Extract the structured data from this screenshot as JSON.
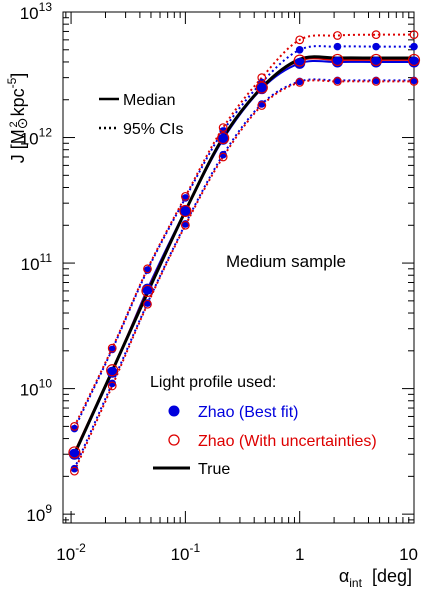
{
  "chart_data": {
    "type": "line",
    "xscale": "log",
    "yscale": "log",
    "xlim": [
      0.0085,
      10
    ],
    "ylim": [
      850000000,
      10000000000000
    ],
    "xlabel": {
      "main": "α",
      "sub": "int",
      "unit": "[deg]"
    },
    "ylabel": {
      "main": "J [M",
      "sun": "⊙",
      "sq": "2",
      "mid": " kpc",
      "exp": "-5",
      "close": "]"
    },
    "x_ticks": [
      {
        "value": 0.01,
        "base": "10",
        "exp": "-2"
      },
      {
        "value": 0.1,
        "base": "10",
        "exp": "-1"
      },
      {
        "value": 1,
        "base": "1",
        "exp": ""
      },
      {
        "value": 10,
        "base": "10",
        "exp": ""
      }
    ],
    "y_ticks": [
      {
        "value": 1000000000,
        "base": "10",
        "exp": "9"
      },
      {
        "value": 10000000000,
        "base": "10",
        "exp": "10"
      },
      {
        "value": 100000000000,
        "base": "10",
        "exp": "11"
      },
      {
        "value": 1000000000000,
        "base": "10",
        "exp": "12"
      },
      {
        "value": 10000000000000,
        "base": "10",
        "exp": "13"
      }
    ],
    "annotation": "Medium sample",
    "line_style_legend": [
      {
        "label": "Median",
        "style": "solid"
      },
      {
        "label": "95% CIs",
        "style": "dotted"
      }
    ],
    "legend_title": "Light profile used:",
    "legend": [
      {
        "label": "Zhao (Best fit)",
        "color": "#0000dd",
        "marker": "filled-circle"
      },
      {
        "label": "Zhao (With uncertainties)",
        "color": "#dd0000",
        "marker": "open-circle"
      },
      {
        "label": "True",
        "color": "#000000",
        "marker": "line"
      }
    ],
    "x": [
      0.0107,
      0.0229,
      0.0466,
      0.1,
      0.214,
      0.466,
      1.0,
      2.14,
      4.66,
      10.0
    ],
    "series": [
      {
        "name": "True",
        "color": "#000000",
        "style": "solid",
        "y": [
          3000000000.0,
          13800000000.0,
          58000000000.0,
          260000000000.0,
          1000000000000.0,
          2500000000000.0,
          4200000000000.0,
          4300000000000.0,
          4300000000000.0,
          4300000000000.0
        ]
      },
      {
        "name": "Zhao (Best fit)",
        "color": "#0000dd",
        "style": "solid",
        "y": [
          3000000000.0,
          13500000000.0,
          62000000000.0,
          262000000000.0,
          970000000000.0,
          2450000000000.0,
          3900000000000.0,
          4000000000000.0,
          4000000000000.0,
          4000000000000.0
        ]
      },
      {
        "name": "Zhao (Best fit)",
        "color": "#0000dd",
        "style": "dotted",
        "y": [
          4800000000.0,
          20500000000.0,
          88000000000.0,
          330000000000.0,
          1130000000000.0,
          2750000000000.0,
          5000000000000.0,
          5300000000000.0,
          5300000000000.0,
          5300000000000.0
        ]
      },
      {
        "name": "Zhao (Best fit)",
        "color": "#0000dd",
        "style": "dotted",
        "y": [
          2300000000.0,
          11000000000.0,
          48000000000.0,
          205000000000.0,
          730000000000.0,
          1850000000000.0,
          2800000000000.0,
          2850000000000.0,
          2850000000000.0,
          2850000000000.0
        ]
      },
      {
        "name": "Zhao (With uncertainties)",
        "color": "#dd0000",
        "style": "solid",
        "y": [
          3100000000.0,
          14000000000.0,
          60000000000.0,
          260000000000.0,
          990000000000.0,
          2500000000000.0,
          4100000000000.0,
          4150000000000.0,
          4150000000000.0,
          4150000000000.0
        ]
      },
      {
        "name": "Zhao (With uncertainties)",
        "color": "#dd0000",
        "style": "dotted",
        "y": [
          5000000000.0,
          21000000000.0,
          90000000000.0,
          340000000000.0,
          1200000000000.0,
          3000000000000.0,
          6000000000000.0,
          6500000000000.0,
          6600000000000.0,
          6600000000000.0
        ]
      },
      {
        "name": "Zhao (With uncertainties)",
        "color": "#dd0000",
        "style": "dotted",
        "y": [
          2200000000.0,
          10500000000.0,
          47000000000.0,
          200000000000.0,
          700000000000.0,
          1800000000000.0,
          2750000000000.0,
          2800000000000.0,
          2800000000000.0,
          2800000000000.0
        ]
      }
    ]
  }
}
